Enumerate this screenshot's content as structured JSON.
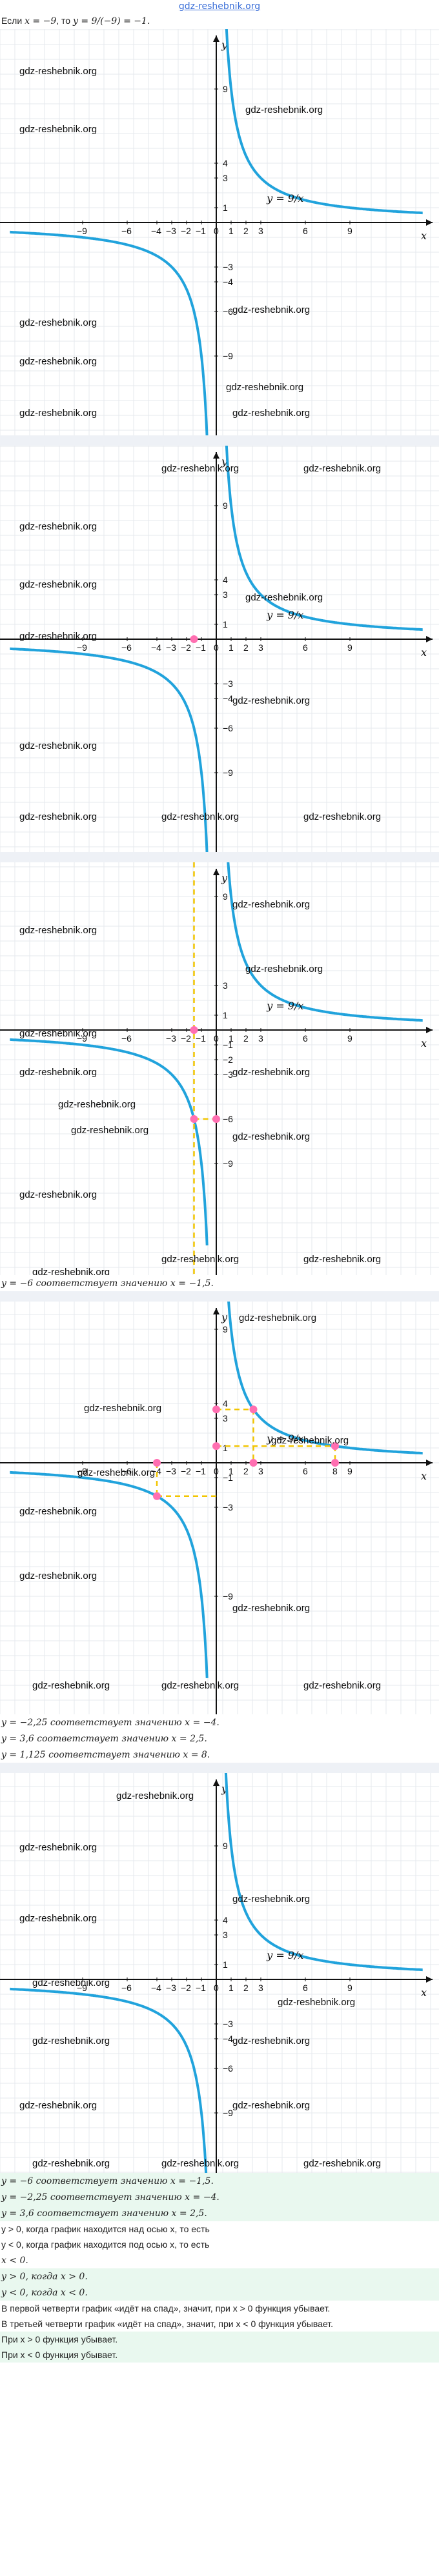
{
  "site": "gdz-reshebnik.org",
  "watermark": "gdz-reshebnik.org",
  "intro": {
    "prefix": "Если",
    "cond": "x = −9",
    "mid": ", то",
    "formula": "y = 9/(−9) = −1."
  },
  "graph_labels": {
    "x_axis": "x",
    "y_axis": "y",
    "function": "y = 9/x",
    "x_ticks_1": [
      "−9",
      "−6",
      "−4",
      "−3",
      "−2",
      "−1",
      "0",
      "1",
      "2",
      "3",
      "6",
      "9"
    ],
    "y_ticks_1": [
      "9",
      "4",
      "3",
      "1",
      "−3",
      "−4",
      "−6",
      "−9"
    ],
    "x_ticks_3": [
      "−9",
      "−6",
      "−3",
      "−2",
      "−1",
      "0",
      "1",
      "2",
      "3",
      "6",
      "9"
    ],
    "y_ticks_3": [
      "9",
      "3",
      "1",
      "−1",
      "−2",
      "−3",
      "−6",
      "−9"
    ],
    "x_ticks_4": [
      "−9",
      "−6",
      "−4",
      "−3",
      "−2",
      "−1",
      "0",
      "1",
      "2",
      "3",
      "6",
      "8",
      "9"
    ],
    "y_ticks_4": [
      "9",
      "4",
      "3",
      "1",
      "−1",
      "−3",
      "−9"
    ]
  },
  "chart_data": [
    {
      "type": "line",
      "title": "",
      "function": "y = 9/x",
      "x": [
        -9,
        -6,
        -4.5,
        -3,
        -2,
        -1,
        1,
        2,
        3,
        4.5,
        6,
        9
      ],
      "y": [
        -1,
        -1.5,
        -2,
        -3,
        -4.5,
        -9,
        9,
        4.5,
        3,
        2,
        1.5,
        1
      ],
      "marked_points": []
    },
    {
      "type": "line",
      "function": "y = 9/x",
      "marked_points": [
        [
          -1.5,
          0
        ]
      ]
    },
    {
      "type": "line",
      "function": "y = 9/x",
      "marked_points": [
        [
          -1.5,
          0
        ],
        [
          -1.5,
          -6
        ],
        [
          0,
          -6
        ]
      ]
    },
    {
      "type": "line",
      "function": "y = 9/x",
      "marked_points": [
        [
          -4,
          -2.25
        ],
        [
          2.5,
          3.6
        ],
        [
          8,
          1.125
        ]
      ]
    },
    {
      "type": "line",
      "function": "y = 9/x",
      "marked_points": []
    }
  ],
  "text": {
    "s3": "y = −6 соответствует значению x = −1,5.",
    "s4a": "y = −2,25 соответствует значению x = −4.",
    "s4b": "y = 3,6 соответствует значению x = 2,5.",
    "s4c": "y = 1,125 соответствует значению x = 8.",
    "g1": "y = −6 соответствует значению x = −1,5.",
    "g2": "y = −2,25 соответствует значению x = −4.",
    "g3": "y = 3,6 соответствует значению x = 2,5.",
    "l1": "y > 0, когда график находится над осью x, то есть",
    "l2": "y < 0, когда график находится под осью x, то есть",
    "l3": "x < 0.",
    "g4": "y > 0, когда x > 0.",
    "g5": "y < 0, когда x < 0.",
    "p1": "В первой четверти график «идёт на спад», значит, при x > 0 функция убывает.",
    "p2": "В третьей четверти график «идёт на спад», значит, при x < 0 функция убывает.",
    "g6": "При x > 0 функция убывает.",
    "g7": "При x < 0 функция убывает."
  }
}
